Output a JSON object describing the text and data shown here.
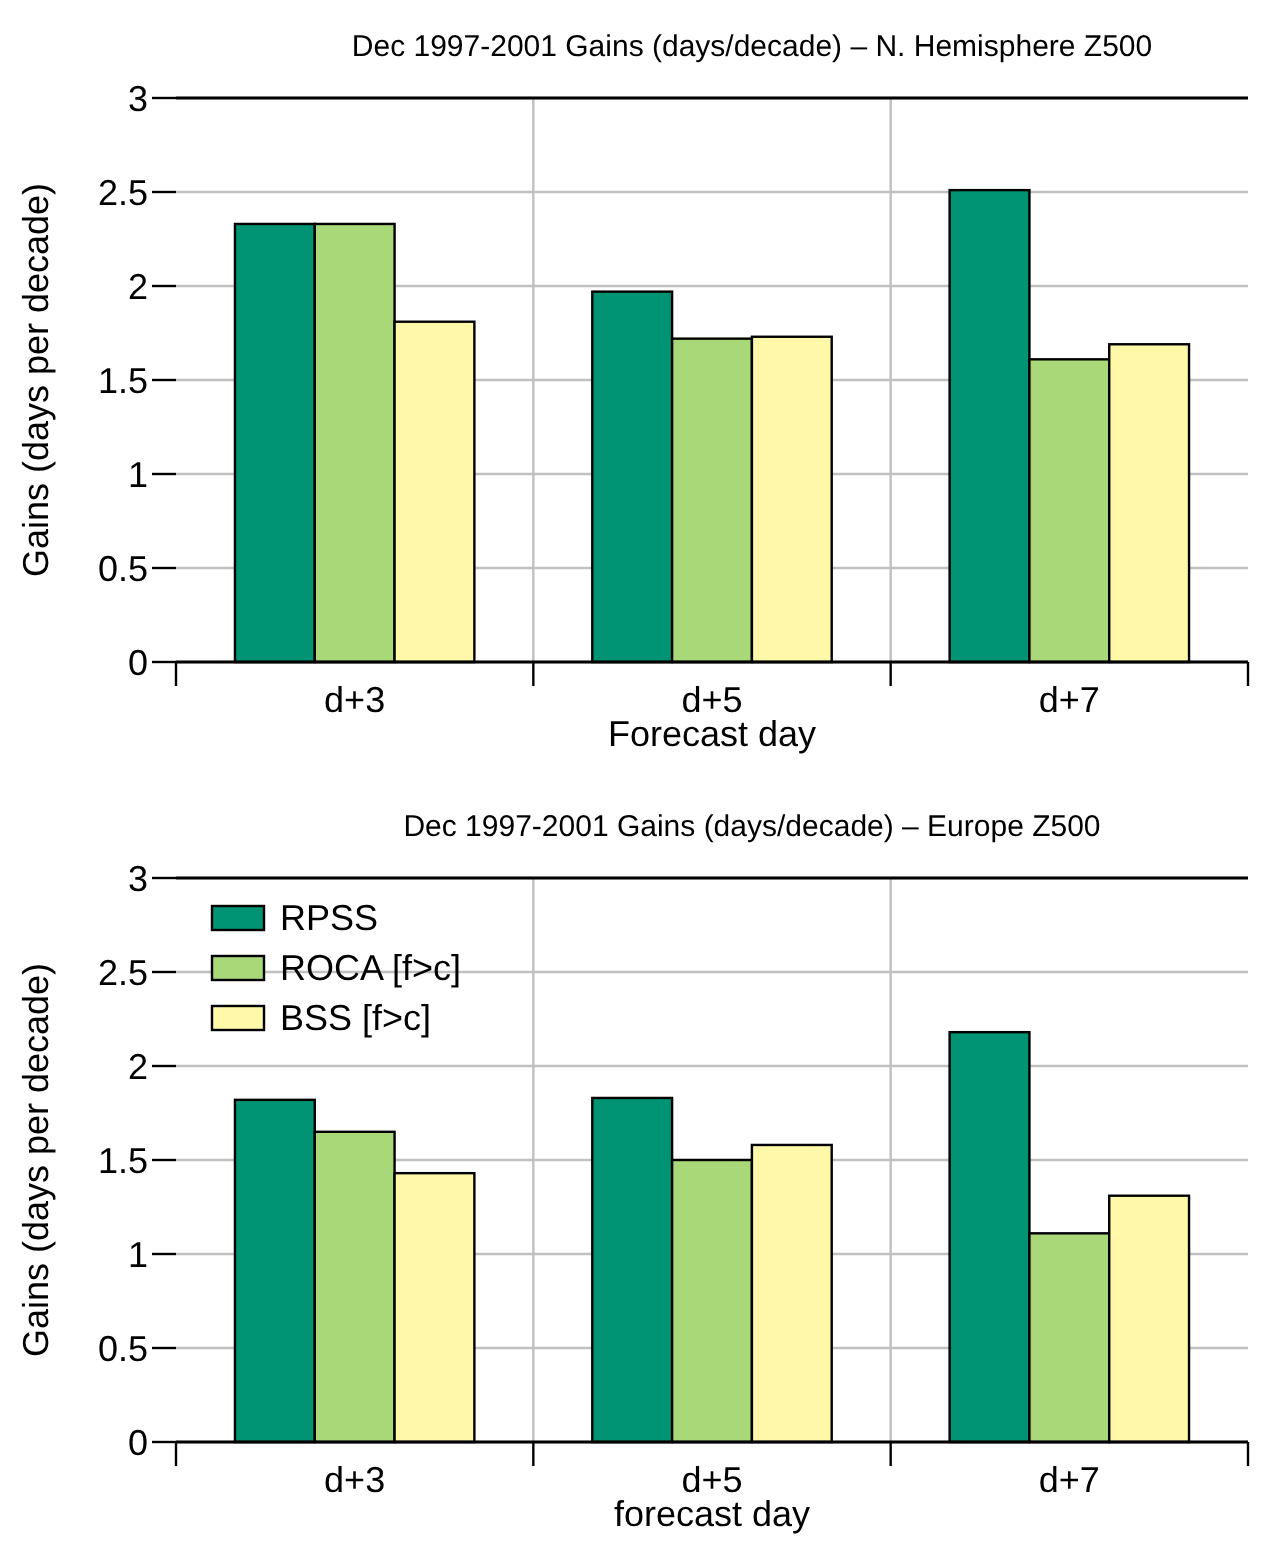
{
  "chart_data": [
    {
      "type": "bar",
      "title": "Dec 1997-2001 Gains (days/decade) – N. Hemisphere Z500",
      "xlabel": "Forecast day",
      "ylabel": "Gains (days per decade)",
      "categories": [
        "d+3",
        "d+5",
        "d+7"
      ],
      "series": [
        {
          "color": "#009474",
          "values": [
            2.33,
            1.97,
            2.51
          ]
        },
        {
          "color": "#a8d878",
          "values": [
            2.33,
            1.72,
            1.61
          ]
        },
        {
          "color": "#fff8a8",
          "values": [
            1.81,
            1.73,
            1.69
          ]
        }
      ],
      "ylim": [
        0,
        3
      ],
      "yticks": [
        0,
        0.5,
        1,
        1.5,
        2,
        2.5,
        3
      ],
      "grid": true
    },
    {
      "type": "bar",
      "title": "Dec 1997-2001 Gains (days/decade) – Europe Z500",
      "xlabel": "forecast day",
      "ylabel": "Gains (days per decade)",
      "categories": [
        "d+3",
        "d+5",
        "d+7"
      ],
      "series": [
        {
          "name": "RPSS",
          "color": "#009474",
          "values": [
            1.82,
            1.83,
            2.18
          ]
        },
        {
          "name": "ROCA [f>c]",
          "color": "#a8d878",
          "values": [
            1.65,
            1.5,
            1.11
          ]
        },
        {
          "name": "BSS [f>c]",
          "color": "#fff8a8",
          "values": [
            1.43,
            1.58,
            1.31
          ]
        }
      ],
      "ylim": [
        0,
        3
      ],
      "yticks": [
        0,
        0.5,
        1,
        1.5,
        2,
        2.5,
        3
      ],
      "grid": true,
      "legend": "top left"
    }
  ]
}
